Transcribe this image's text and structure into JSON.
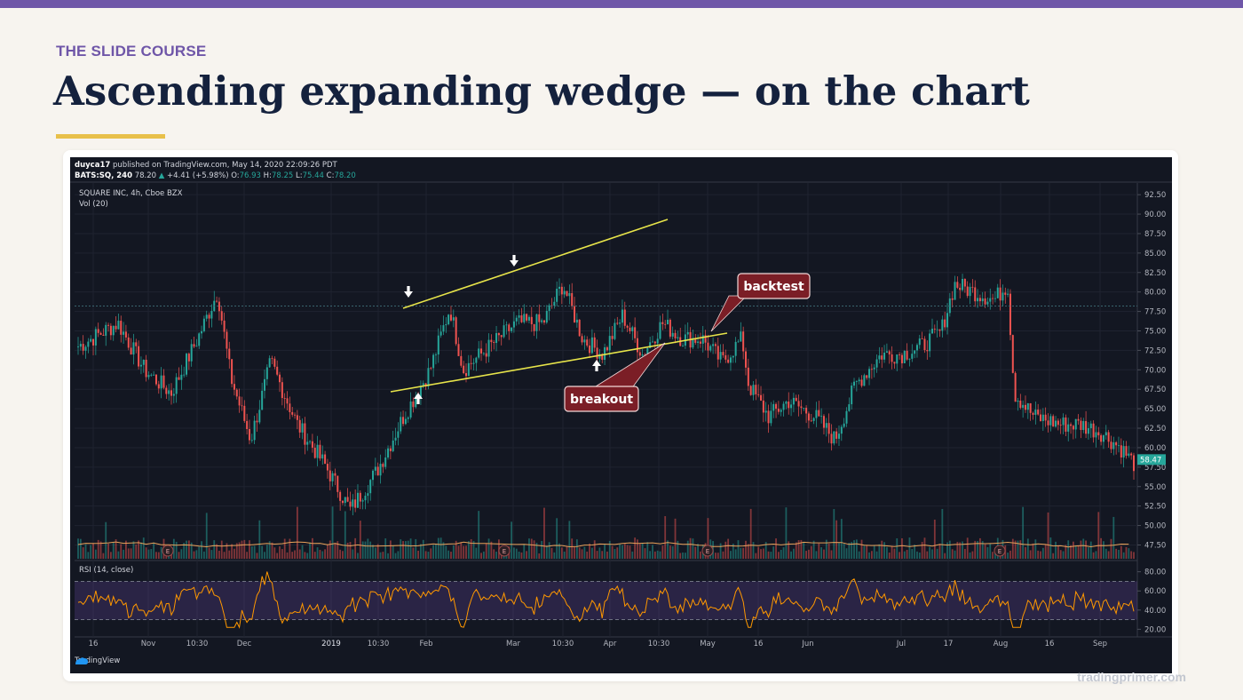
{
  "slide": {
    "kicker": "THE SLIDE COURSE",
    "title": "Ascending expanding wedge — on the chart",
    "credit": "tradingprimer.com",
    "accent_color": "#e8c04a",
    "brand_color": "#6f56a8"
  },
  "chart_header": {
    "publisher": "duyca17",
    "published": "published on TradingView.com, May 14, 2020 22:09:26 PDT",
    "ticker_line": {
      "symbol": "BATS:SQ, 240",
      "price": "78.20",
      "change": "+4.41 (+5.98%)",
      "o_label": "O:",
      "o_val": "76.93",
      "h_label": "H:",
      "h_val": "78.25",
      "l_label": "L:",
      "l_val": "75.44",
      "c_label": "C:",
      "c_val": "78.20"
    },
    "instrument": "SQUARE INC, 4h, Cboe BZX",
    "volume_label": "Vol (20)",
    "rsi_label": "RSI (14, close)",
    "brand": "TradingView"
  },
  "annotations": {
    "breakout": "breakout",
    "backtest": "backtest",
    "earnings_marker": "E"
  },
  "chart_data": {
    "type": "candlestick",
    "price_axis": [
      "92.50",
      "90.00",
      "87.50",
      "85.00",
      "82.50",
      "80.00",
      "77.50",
      "75.00",
      "72.50",
      "70.00",
      "67.50",
      "65.00",
      "62.50",
      "60.00",
      "57.50",
      "55.00",
      "52.50",
      "50.00",
      "47.50"
    ],
    "last_price": "58.47",
    "rsi_axis": [
      "80.00",
      "60.00",
      "40.00",
      "20.00"
    ],
    "rsi_bands": [
      70,
      30
    ],
    "time_axis": [
      "16",
      "Nov",
      "10:30",
      "Dec",
      "2019",
      "10:30",
      "Feb",
      "Mar",
      "10:30",
      "Apr",
      "10:30",
      "May",
      "16",
      "Jun",
      "Jul",
      "17",
      "Aug",
      "16",
      "Sep"
    ],
    "ylim": [
      45.5,
      94
    ],
    "anchors": [
      {
        "t": 0,
        "p": 73
      },
      {
        "t": 6,
        "p": 76
      },
      {
        "t": 10,
        "p": 70
      },
      {
        "t": 14,
        "p": 67
      },
      {
        "t": 18,
        "p": 74
      },
      {
        "t": 21,
        "p": 80
      },
      {
        "t": 23,
        "p": 69
      },
      {
        "t": 26,
        "p": 61
      },
      {
        "t": 29,
        "p": 71
      },
      {
        "t": 33,
        "p": 63
      },
      {
        "t": 37,
        "p": 58
      },
      {
        "t": 41,
        "p": 52
      },
      {
        "t": 45,
        "p": 57
      },
      {
        "t": 49,
        "p": 64
      },
      {
        "t": 53,
        "p": 70
      },
      {
        "t": 56,
        "p": 78
      },
      {
        "t": 58,
        "p": 70
      },
      {
        "t": 62,
        "p": 73
      },
      {
        "t": 66,
        "p": 76
      },
      {
        "t": 70,
        "p": 76
      },
      {
        "t": 73,
        "p": 81
      },
      {
        "t": 76,
        "p": 74
      },
      {
        "t": 79,
        "p": 72
      },
      {
        "t": 82,
        "p": 77
      },
      {
        "t": 85,
        "p": 72
      },
      {
        "t": 88,
        "p": 76
      },
      {
        "t": 91,
        "p": 74
      },
      {
        "t": 94,
        "p": 74
      },
      {
        "t": 97,
        "p": 71
      },
      {
        "t": 100,
        "p": 74
      },
      {
        "t": 101,
        "p": 68
      },
      {
        "t": 104,
        "p": 64
      },
      {
        "t": 107,
        "p": 66
      },
      {
        "t": 111,
        "p": 64
      },
      {
        "t": 114,
        "p": 61
      },
      {
        "t": 117,
        "p": 68
      },
      {
        "t": 121,
        "p": 72
      },
      {
        "t": 124,
        "p": 72
      },
      {
        "t": 127,
        "p": 73
      },
      {
        "t": 130,
        "p": 75
      },
      {
        "t": 132,
        "p": 81
      },
      {
        "t": 135,
        "p": 80
      },
      {
        "t": 138,
        "p": 79
      },
      {
        "t": 140,
        "p": 81
      },
      {
        "t": 141,
        "p": 67
      },
      {
        "t": 144,
        "p": 64
      },
      {
        "t": 148,
        "p": 63
      },
      {
        "t": 151,
        "p": 63
      },
      {
        "t": 154,
        "p": 62
      },
      {
        "t": 157,
        "p": 60
      },
      {
        "t": 159,
        "p": 58
      }
    ]
  }
}
